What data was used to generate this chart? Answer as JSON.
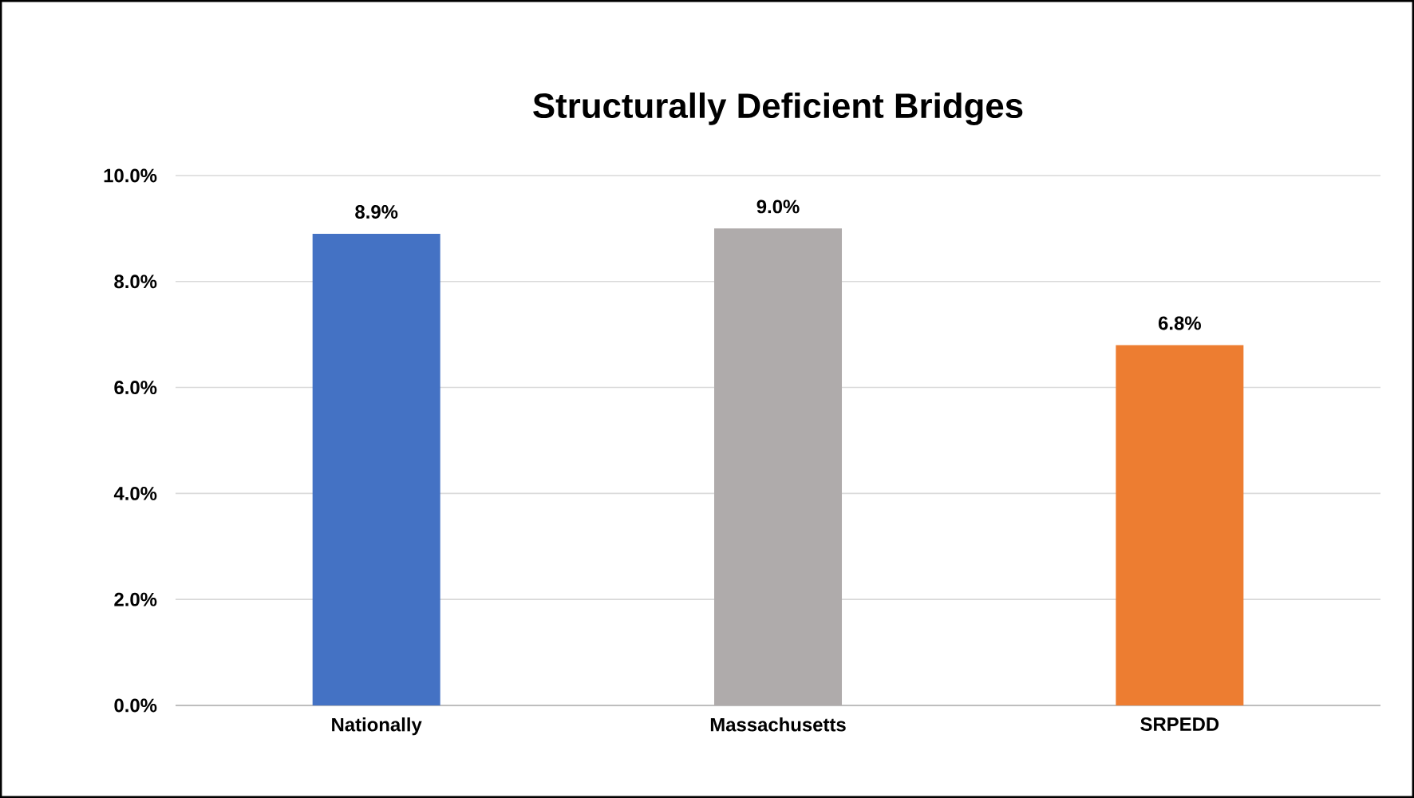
{
  "chart_data": {
    "type": "bar",
    "title": "Structurally Deficient Bridges",
    "categories": [
      "Nationally",
      "Massachusetts",
      "SRPEDD"
    ],
    "values": [
      8.9,
      9.0,
      6.8
    ],
    "colors": [
      "#4472c4",
      "#afabab",
      "#ed7d31"
    ],
    "value_labels": [
      "8.9%",
      "9.0%",
      "6.8%"
    ],
    "ylim": [
      0,
      10
    ],
    "yticks": [
      {
        "value": 0,
        "label": "0.0%"
      },
      {
        "value": 2,
        "label": "2.0%"
      },
      {
        "value": 4,
        "label": "4.0%"
      },
      {
        "value": 6,
        "label": "6.0%"
      },
      {
        "value": 8,
        "label": "8.0%"
      },
      {
        "value": 10,
        "label": "10.0%"
      }
    ],
    "grid": "y"
  }
}
